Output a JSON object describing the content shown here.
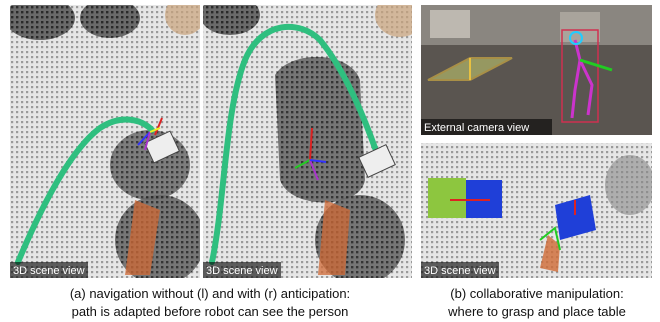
{
  "panels": [
    {
      "label": "3D scene view"
    },
    {
      "label": "3D scene view"
    },
    {
      "label": "External camera view"
    },
    {
      "label": "3D scene view"
    }
  ],
  "captions": [
    {
      "lines": [
        "(a) navigation without (l) and with (r) anticipation:",
        "path is adapted before robot can see the person"
      ]
    },
    {
      "lines": [
        "(b) collaborative manipulation:",
        "where to grasp and place table"
      ]
    }
  ]
}
